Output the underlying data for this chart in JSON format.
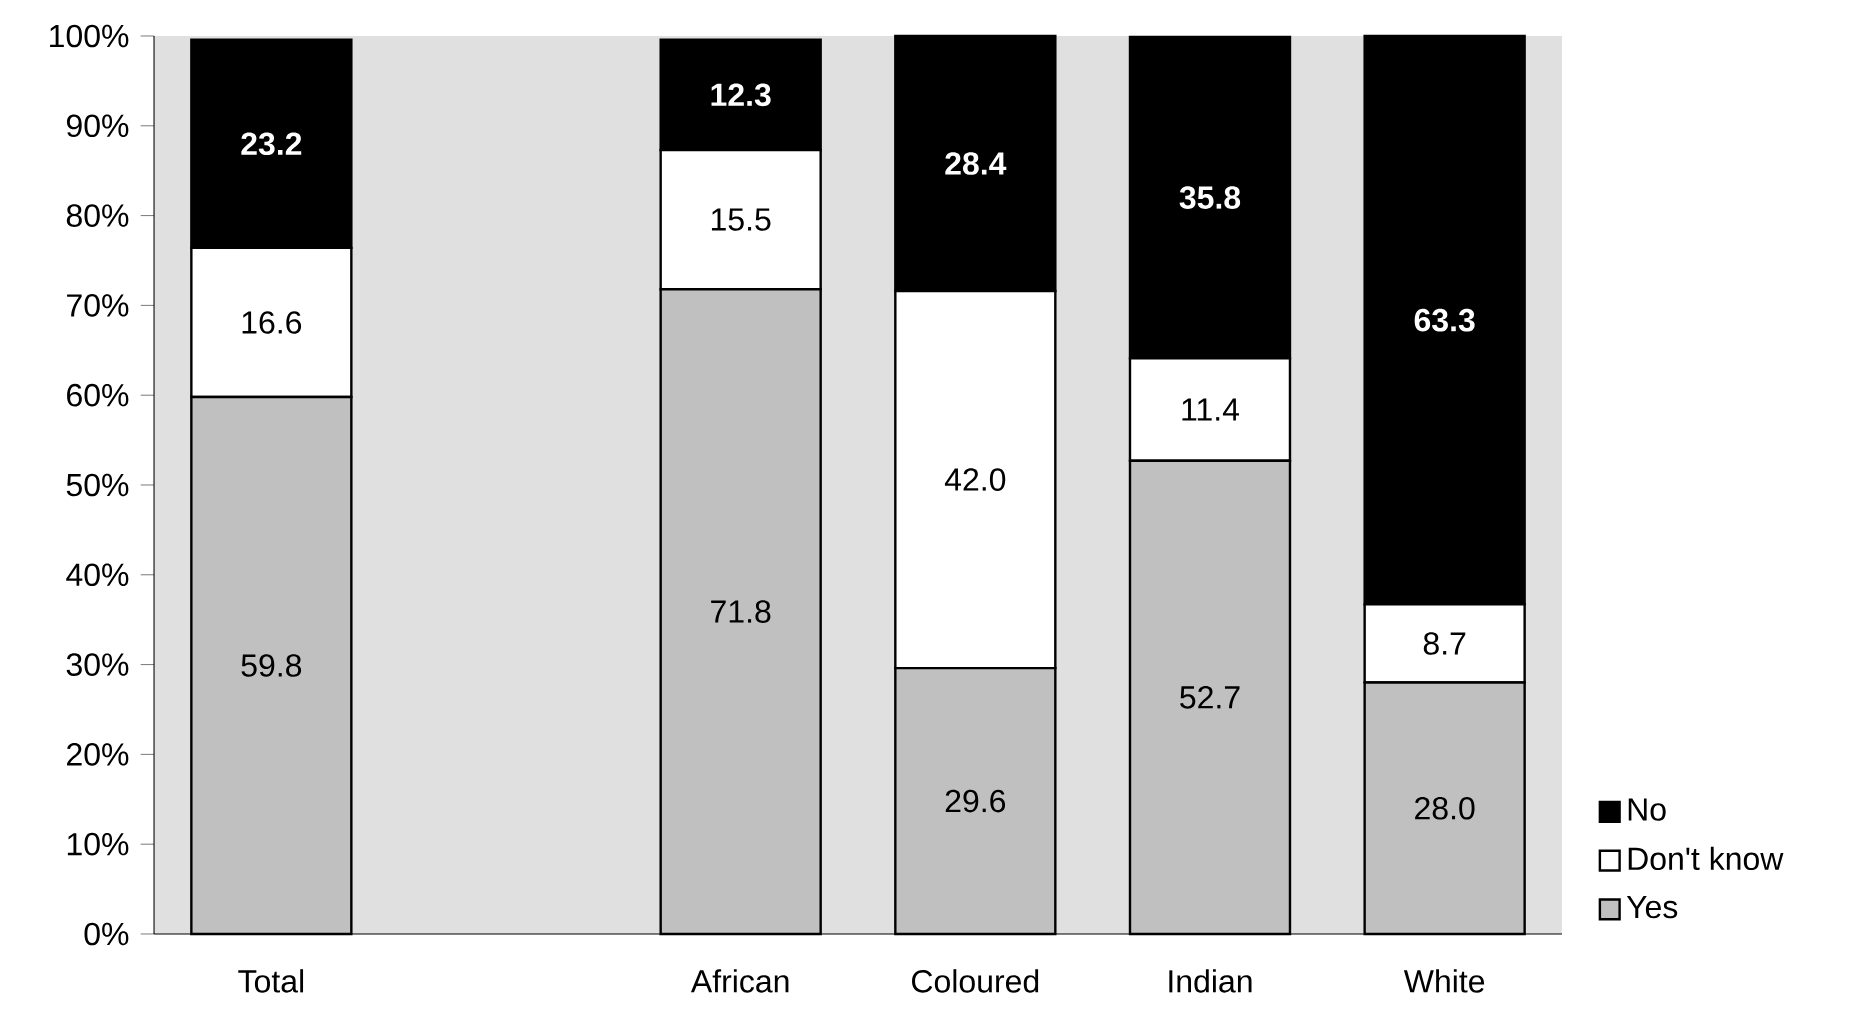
{
  "chart_data": {
    "type": "bar",
    "stacked": true,
    "legend": "bottom right",
    "grid": false,
    "categories": [
      "Total",
      null,
      "African",
      "Coloured",
      "Indian",
      "White"
    ],
    "ylim": [
      0,
      100
    ],
    "yticks": [
      {
        "value": 0,
        "label": "0%"
      },
      {
        "value": 10,
        "label": "10%"
      },
      {
        "value": 20,
        "label": "20%"
      },
      {
        "value": 30,
        "label": "30%"
      },
      {
        "value": 40,
        "label": "40%"
      },
      {
        "value": 50,
        "label": "50%"
      },
      {
        "value": 60,
        "label": "60%"
      },
      {
        "value": 70,
        "label": "70%"
      },
      {
        "value": 80,
        "label": "80%"
      },
      {
        "value": 90,
        "label": "90%"
      },
      {
        "value": 100,
        "label": "100%"
      }
    ],
    "series": [
      {
        "name": "Yes",
        "color": "#c0c0c0",
        "values": [
          59.8,
          null,
          71.8,
          29.6,
          52.7,
          28.0
        ],
        "value_labels": [
          "59.8",
          null,
          "71.8",
          "29.6",
          "52.7",
          "28.0"
        ]
      },
      {
        "name": "Don't know",
        "color": "#ffffff",
        "values": [
          16.6,
          null,
          15.5,
          42.0,
          11.4,
          8.7
        ],
        "value_labels": [
          "16.6",
          null,
          "15.5",
          "42.0",
          "11.4",
          "8.7"
        ]
      },
      {
        "name": "No",
        "color": "#000000",
        "values": [
          23.2,
          null,
          12.3,
          28.4,
          35.8,
          63.3
        ],
        "value_labels": [
          "23.2",
          null,
          "12.3",
          "28.4",
          "35.8",
          "63.3"
        ]
      }
    ]
  }
}
